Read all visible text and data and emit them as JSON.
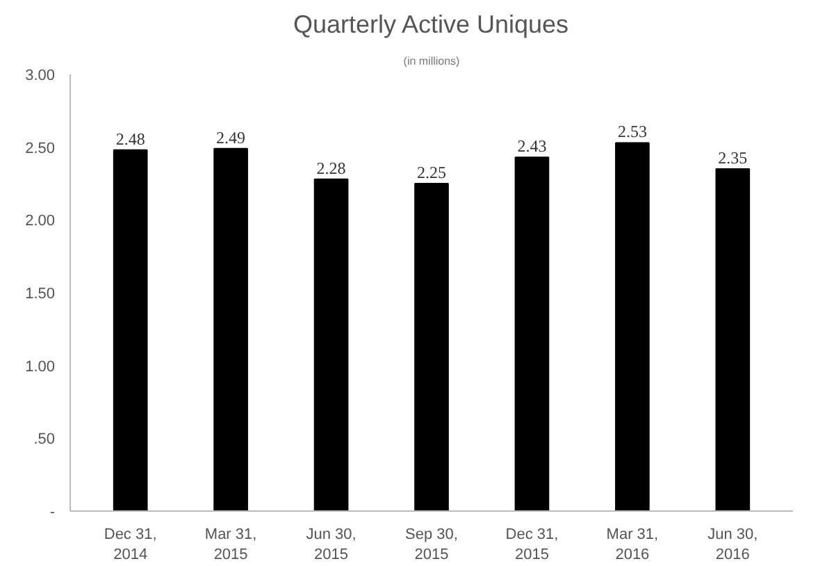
{
  "chart_data": {
    "type": "bar",
    "title": "Quarterly Active Uniques",
    "subtitle": "(in millions)",
    "categories": [
      "Dec 31,\n2014",
      "Mar 31,\n2015",
      "Jun 30,\n2015",
      "Sep 30,\n2015",
      "Dec 31,\n2015",
      "Mar 31,\n2016",
      "Jun 30,\n2016"
    ],
    "values": [
      2.48,
      2.49,
      2.28,
      2.25,
      2.43,
      2.53,
      2.35
    ],
    "color": "#000000",
    "ylim": [
      0,
      3
    ],
    "yticks": [
      {
        "value": 0,
        "label": "-"
      },
      {
        "value": 0.5,
        "label": ".50"
      },
      {
        "value": 1,
        "label": "1.00"
      },
      {
        "value": 1.5,
        "label": "1.50"
      },
      {
        "value": 2,
        "label": "2.00"
      },
      {
        "value": 2.5,
        "label": "2.50"
      },
      {
        "value": 3,
        "label": "3.00"
      }
    ],
    "data_labels": true,
    "grid": false
  }
}
